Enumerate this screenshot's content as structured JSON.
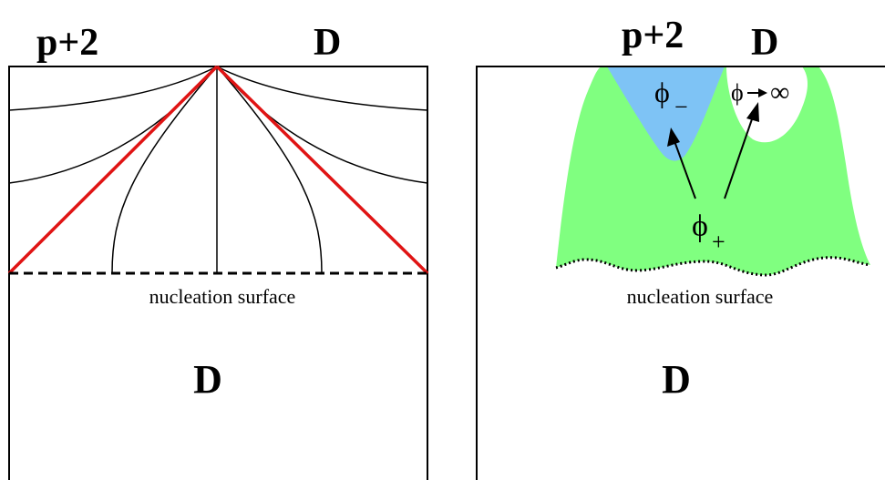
{
  "colors": {
    "frame": "#000000",
    "red_line": "#e01414",
    "green_region": "#80ff80",
    "blue_region": "#7ec3f5",
    "background": "#ffffff"
  },
  "left_panel": {
    "top_left_label": "p+2",
    "top_right_label": "D",
    "surface_label": "nucleation surface",
    "bottom_label": "D"
  },
  "right_panel": {
    "top_left_label": "p+2",
    "top_right_label": "D",
    "phi_minus_label": "ϕ",
    "phi_minus_sub": "−",
    "phi_infinity_label": "ϕ",
    "infinity_label": "∞",
    "phi_plus_label": "ϕ",
    "phi_plus_sub": "+",
    "surface_label": "nucleation surface",
    "bottom_label": "D"
  }
}
